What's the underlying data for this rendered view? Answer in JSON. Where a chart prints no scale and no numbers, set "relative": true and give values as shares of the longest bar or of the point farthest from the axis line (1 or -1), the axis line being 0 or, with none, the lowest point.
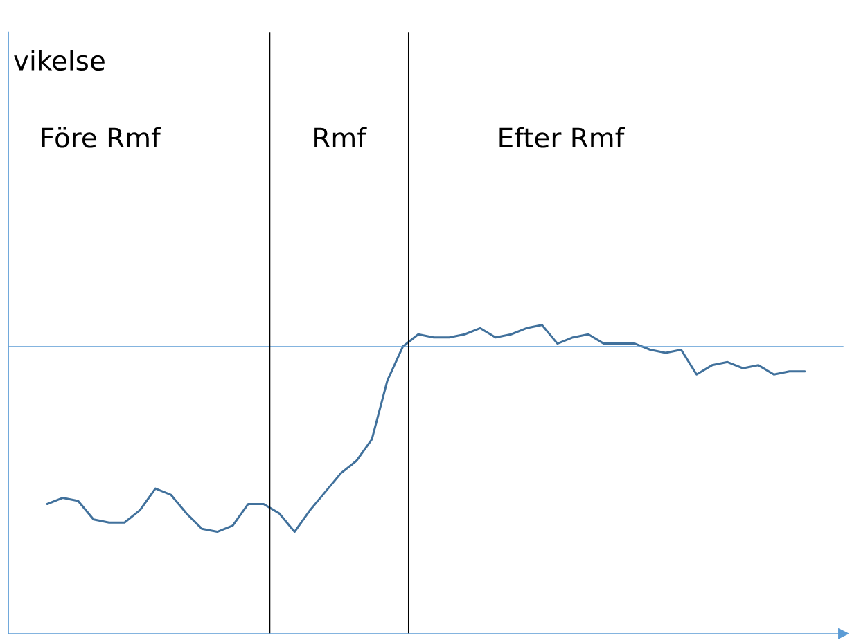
{
  "chart_data": {
    "type": "line",
    "title": "vikelse",
    "relative": true,
    "categories": [
      null,
      null,
      null,
      null,
      null,
      null,
      null,
      null,
      null,
      null,
      null,
      null,
      null,
      null,
      null,
      null,
      null,
      null,
      null,
      null,
      null,
      null,
      null,
      null,
      null,
      null,
      null,
      null,
      null,
      null,
      null,
      null,
      null,
      null,
      null,
      null,
      null,
      null,
      null,
      null,
      null,
      null,
      null,
      null,
      null,
      null,
      null,
      null,
      null,
      null
    ],
    "series": [
      {
        "color": "#41719c",
        "values": [
          0.42,
          0.44,
          0.43,
          0.37,
          0.36,
          0.36,
          0.4,
          0.47,
          0.45,
          0.39,
          0.34,
          0.33,
          0.35,
          0.42,
          0.42,
          0.39,
          0.33,
          0.4,
          0.46,
          0.52,
          0.56,
          0.63,
          0.82,
          0.93,
          0.97,
          0.96,
          0.96,
          0.97,
          0.99,
          0.96,
          0.97,
          0.99,
          1,
          0.94,
          0.96,
          0.97,
          0.94,
          0.94,
          0.94,
          0.92,
          0.91,
          0.92,
          0.84,
          0.87,
          0.88,
          0.86,
          0.87,
          0.84,
          0.85,
          0.85
        ]
      }
    ],
    "ref_lines": [
      {
        "axis": "y",
        "value": 0.93,
        "color": "#5b9bd5"
      }
    ],
    "annotations": [
      "Före Rmf",
      "Rmf",
      "Efter Rmf"
    ]
  }
}
